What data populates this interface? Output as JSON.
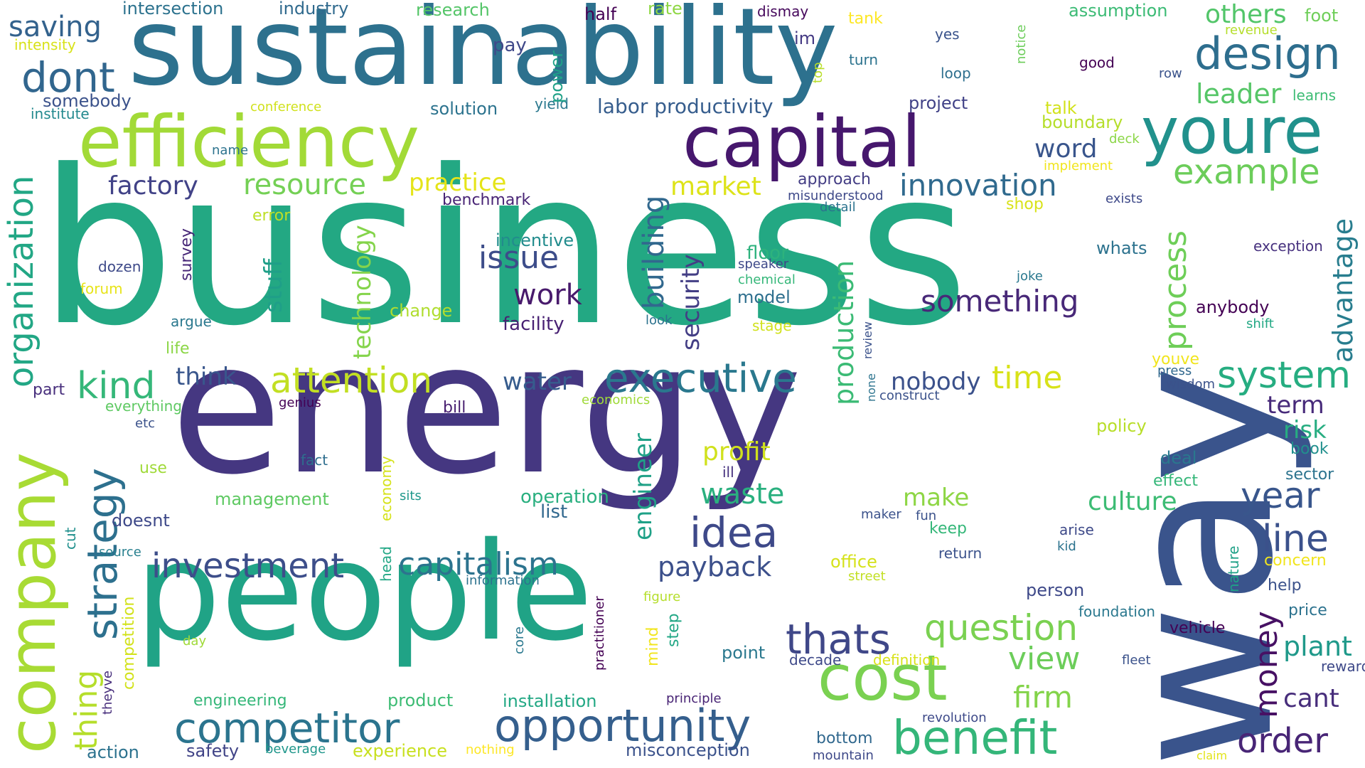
{
  "words": [
    {
      "text": "business",
      "color": "#23a883"
    },
    {
      "text": "energy",
      "color": "#453781"
    },
    {
      "text": "sustainability",
      "color": "#2d718e"
    },
    {
      "text": "people",
      "color": "#20a386"
    },
    {
      "text": "way",
      "color": "#3a548c"
    },
    {
      "text": "efficiency",
      "color": "#a2da37"
    },
    {
      "text": "capital",
      "color": "#46176d"
    },
    {
      "text": "youre",
      "color": "#21918c"
    },
    {
      "text": "company",
      "color": "#a8db34"
    },
    {
      "text": "cost",
      "color": "#7ad151"
    },
    {
      "text": "benefit",
      "color": "#34b679"
    },
    {
      "text": "opportunity",
      "color": "#355f8d"
    },
    {
      "text": "competitor",
      "color": "#2b748e"
    },
    {
      "text": "idea",
      "color": "#3e4989"
    },
    {
      "text": "thats",
      "color": "#3f4788"
    },
    {
      "text": "executive",
      "color": "#2a788e"
    },
    {
      "text": "design",
      "color": "#2e6e8e"
    },
    {
      "text": "dont",
      "color": "#31668e"
    },
    {
      "text": "strategy",
      "color": "#2d708e"
    },
    {
      "text": "question",
      "color": "#7ad151"
    },
    {
      "text": "organization",
      "color": "#22a785"
    },
    {
      "text": "system",
      "color": "#26ad81"
    },
    {
      "text": "attention",
      "color": "#c2df23"
    },
    {
      "text": "investment",
      "color": "#3d4e8a"
    },
    {
      "text": "capitalism",
      "color": "#2c738e"
    },
    {
      "text": "example",
      "color": "#6ccd5a"
    },
    {
      "text": "year",
      "color": "#39568c"
    },
    {
      "text": "line",
      "color": "#3b518b"
    },
    {
      "text": "order",
      "color": "#482576"
    },
    {
      "text": "money",
      "color": "#471164"
    },
    {
      "text": "kind",
      "color": "#35b779"
    },
    {
      "text": "issue",
      "color": "#3d4d8a"
    },
    {
      "text": "something",
      "color": "#482878"
    },
    {
      "text": "innovation",
      "color": "#306a8e"
    },
    {
      "text": "resource",
      "color": "#74d055"
    },
    {
      "text": "process",
      "color": "#6ece58"
    },
    {
      "text": "view",
      "color": "#6ccd5a"
    },
    {
      "text": "firm",
      "color": "#84d44b"
    },
    {
      "text": "time",
      "color": "#d8e219"
    },
    {
      "text": "saving",
      "color": "#33628d"
    },
    {
      "text": "factory",
      "color": "#414287"
    },
    {
      "text": "thing",
      "color": "#b5de2b"
    },
    {
      "text": "practice",
      "color": "#e5e419"
    },
    {
      "text": "building",
      "color": "#31688e"
    },
    {
      "text": "production",
      "color": "#3bbb75"
    },
    {
      "text": "advantage",
      "color": "#287d8e"
    },
    {
      "text": "payback",
      "color": "#3c508b"
    },
    {
      "text": "waste",
      "color": "#2ab07f"
    },
    {
      "text": "culture",
      "color": "#3dbc74"
    },
    {
      "text": "work",
      "color": "#481a6c"
    },
    {
      "text": "plant",
      "color": "#1f998a"
    },
    {
      "text": "market",
      "color": "#dde318"
    },
    {
      "text": "leader",
      "color": "#56c667"
    },
    {
      "text": "profit",
      "color": "#d0e11c"
    },
    {
      "text": "security",
      "color": "#433e85"
    },
    {
      "text": "cant",
      "color": "#472d7b"
    },
    {
      "text": "technology",
      "color": "#84d44b"
    },
    {
      "text": "engineer",
      "color": "#1fa187"
    },
    {
      "text": "others",
      "color": "#52c569"
    },
    {
      "text": "think",
      "color": "#39568c"
    },
    {
      "text": "make",
      "color": "#8ed645"
    },
    {
      "text": "nobody",
      "color": "#3b518b"
    },
    {
      "text": "stuff",
      "color": "#1f9f88"
    },
    {
      "text": "water",
      "color": "#365c8d"
    },
    {
      "text": "word",
      "color": "#39558c"
    },
    {
      "text": "risk",
      "color": "#27ad81"
    },
    {
      "text": "term",
      "color": "#472a7a"
    },
    {
      "text": "floor",
      "color": "#2db27d"
    },
    {
      "text": "labor productivity",
      "color": "#365d8d"
    },
    {
      "text": "management",
      "color": "#5ec962"
    },
    {
      "text": "operation",
      "color": "#29af7f"
    },
    {
      "text": "list",
      "color": "#31688e"
    },
    {
      "text": "model",
      "color": "#2e6f8e"
    },
    {
      "text": "change",
      "color": "#b0dd2f"
    },
    {
      "text": "facility",
      "color": "#482173"
    },
    {
      "text": "incentive",
      "color": "#228c8d"
    },
    {
      "text": "benchmark",
      "color": "#482475"
    },
    {
      "text": "approach",
      "color": "#433d84"
    },
    {
      "text": "solution",
      "color": "#2c738e"
    },
    {
      "text": "project",
      "color": "#414287"
    },
    {
      "text": "boundary",
      "color": "#b5de2b"
    },
    {
      "text": "talk",
      "color": "#d2e21b"
    },
    {
      "text": "tank",
      "color": "#fde725"
    },
    {
      "text": "foot",
      "color": "#6ece58"
    },
    {
      "text": "assumption",
      "color": "#3cbb75"
    },
    {
      "text": "research",
      "color": "#54c568"
    },
    {
      "text": "industry",
      "color": "#306a8e"
    },
    {
      "text": "intersection",
      "color": "#2c728e"
    },
    {
      "text": "half",
      "color": "#440154"
    },
    {
      "text": "rate",
      "color": "#8fd744"
    },
    {
      "text": "dismay",
      "color": "#46085c"
    },
    {
      "text": "im",
      "color": "#443983"
    },
    {
      "text": "yes",
      "color": "#3a538b"
    },
    {
      "text": "good",
      "color": "#440154"
    },
    {
      "text": "revenue",
      "color": "#b5de2b"
    },
    {
      "text": "notice",
      "color": "#6ccd5a"
    },
    {
      "text": "turn",
      "color": "#2c738e"
    },
    {
      "text": "loop",
      "color": "#2e6f8e"
    },
    {
      "text": "row",
      "color": "#3a538b"
    },
    {
      "text": "learns",
      "color": "#3dbc74"
    },
    {
      "text": "top",
      "color": "#b8de29"
    },
    {
      "text": "yield",
      "color": "#2a788e"
    },
    {
      "text": "pay",
      "color": "#3f4889"
    },
    {
      "text": "power",
      "color": "#1fa188"
    },
    {
      "text": "intensity",
      "color": "#d8e219"
    },
    {
      "text": "somebody",
      "color": "#3b528b"
    },
    {
      "text": "institute",
      "color": "#23898e"
    },
    {
      "text": "conference",
      "color": "#d0e11c"
    },
    {
      "text": "name",
      "color": "#2c738e"
    },
    {
      "text": "error",
      "color": "#bddf26"
    },
    {
      "text": "survey",
      "color": "#482878"
    },
    {
      "text": "dozen",
      "color": "#3e4a89"
    },
    {
      "text": "forum",
      "color": "#e7e419"
    },
    {
      "text": "argue",
      "color": "#2a788e"
    },
    {
      "text": "life",
      "color": "#8bd646"
    },
    {
      "text": "part",
      "color": "#472e7c"
    },
    {
      "text": "everything",
      "color": "#5ec962"
    },
    {
      "text": "genius",
      "color": "#440154"
    },
    {
      "text": "etc",
      "color": "#3b528b"
    },
    {
      "text": "bill",
      "color": "#481f70"
    },
    {
      "text": "economics",
      "color": "#a0da39"
    },
    {
      "text": "use",
      "color": "#a0da39"
    },
    {
      "text": "fact",
      "color": "#2e6e8e"
    },
    {
      "text": "ill",
      "color": "#46307e"
    },
    {
      "text": "sits",
      "color": "#1f988b"
    },
    {
      "text": "economy",
      "color": "#d5e21a"
    },
    {
      "text": "head",
      "color": "#22a785"
    },
    {
      "text": "doesnt",
      "color": "#3e4989"
    },
    {
      "text": "cut",
      "color": "#21908d"
    },
    {
      "text": "source",
      "color": "#277f8e"
    },
    {
      "text": "information",
      "color": "#2c728e"
    },
    {
      "text": "competition",
      "color": "#d2e21b"
    },
    {
      "text": "theyve",
      "color": "#472e7c"
    },
    {
      "text": "day",
      "color": "#a0da39"
    },
    {
      "text": "engineering",
      "color": "#35b779"
    },
    {
      "text": "product",
      "color": "#3dbc74"
    },
    {
      "text": "installation",
      "color": "#22a884"
    },
    {
      "text": "principle",
      "color": "#482475"
    },
    {
      "text": "revolution",
      "color": "#3e4a89"
    },
    {
      "text": "action",
      "color": "#2c728e"
    },
    {
      "text": "safety",
      "color": "#414487"
    },
    {
      "text": "beverage",
      "color": "#1f968b"
    },
    {
      "text": "experience",
      "color": "#c8e020"
    },
    {
      "text": "nothing",
      "color": "#fde725"
    },
    {
      "text": "misconception",
      "color": "#3b528b"
    },
    {
      "text": "bottom",
      "color": "#31688e"
    },
    {
      "text": "mountain",
      "color": "#3e4989"
    },
    {
      "text": "claim",
      "color": "#e2e418"
    },
    {
      "text": "fleet",
      "color": "#3b528b"
    },
    {
      "text": "definition",
      "color": "#d8e219"
    },
    {
      "text": "decade",
      "color": "#3e4989"
    },
    {
      "text": "point",
      "color": "#2a788e"
    },
    {
      "text": "step",
      "color": "#22a785"
    },
    {
      "text": "mind",
      "color": "#f1e51d"
    },
    {
      "text": "figure",
      "color": "#b5de2b"
    },
    {
      "text": "practitioner",
      "color": "#440154"
    },
    {
      "text": "core",
      "color": "#2a788e"
    },
    {
      "text": "street",
      "color": "#c2df23"
    },
    {
      "text": "office",
      "color": "#d5e21a"
    },
    {
      "text": "fun",
      "color": "#3b528b"
    },
    {
      "text": "maker",
      "color": "#3b528b"
    },
    {
      "text": "return",
      "color": "#3b528b"
    },
    {
      "text": "keep",
      "color": "#35b779"
    },
    {
      "text": "arise",
      "color": "#3e4a89"
    },
    {
      "text": "kid",
      "color": "#2c738e"
    },
    {
      "text": "person",
      "color": "#3e4989"
    },
    {
      "text": "foundation",
      "color": "#2a788e"
    },
    {
      "text": "vehicle",
      "color": "#440154"
    },
    {
      "text": "deal",
      "color": "#2a788e"
    },
    {
      "text": "effect",
      "color": "#35b779"
    },
    {
      "text": "policy",
      "color": "#b8de29"
    },
    {
      "text": "book",
      "color": "#21908d"
    },
    {
      "text": "sector",
      "color": "#2c738e"
    },
    {
      "text": "concern",
      "color": "#f1e51d"
    },
    {
      "text": "help",
      "color": "#3b528b"
    },
    {
      "text": "price",
      "color": "#2c728e"
    },
    {
      "text": "reward",
      "color": "#3e4989"
    },
    {
      "text": "nature",
      "color": "#1fa187"
    },
    {
      "text": "construct",
      "color": "#3b528b"
    },
    {
      "text": "none",
      "color": "#2c738e"
    },
    {
      "text": "review",
      "color": "#3b528b"
    },
    {
      "text": "stage",
      "color": "#d0e11c"
    },
    {
      "text": "look",
      "color": "#2c728e"
    },
    {
      "text": "speaker",
      "color": "#3e4989"
    },
    {
      "text": "chemical",
      "color": "#35b779"
    },
    {
      "text": "detail",
      "color": "#2c738e"
    },
    {
      "text": "misunderstood",
      "color": "#3e4989"
    },
    {
      "text": "shop",
      "color": "#d8e219"
    },
    {
      "text": "implement",
      "color": "#f1e51d"
    },
    {
      "text": "deck",
      "color": "#8bd646"
    },
    {
      "text": "exists",
      "color": "#3e4989"
    },
    {
      "text": "whats",
      "color": "#2c728e"
    },
    {
      "text": "joke",
      "color": "#2a788e"
    },
    {
      "text": "exception",
      "color": "#46307e"
    },
    {
      "text": "anybody",
      "color": "#440154"
    },
    {
      "text": "shift",
      "color": "#22a884"
    },
    {
      "text": "youve",
      "color": "#f1e51d"
    },
    {
      "text": "press",
      "color": "#31688e"
    },
    {
      "text": "wisdom",
      "color": "#3b528b"
    }
  ]
}
